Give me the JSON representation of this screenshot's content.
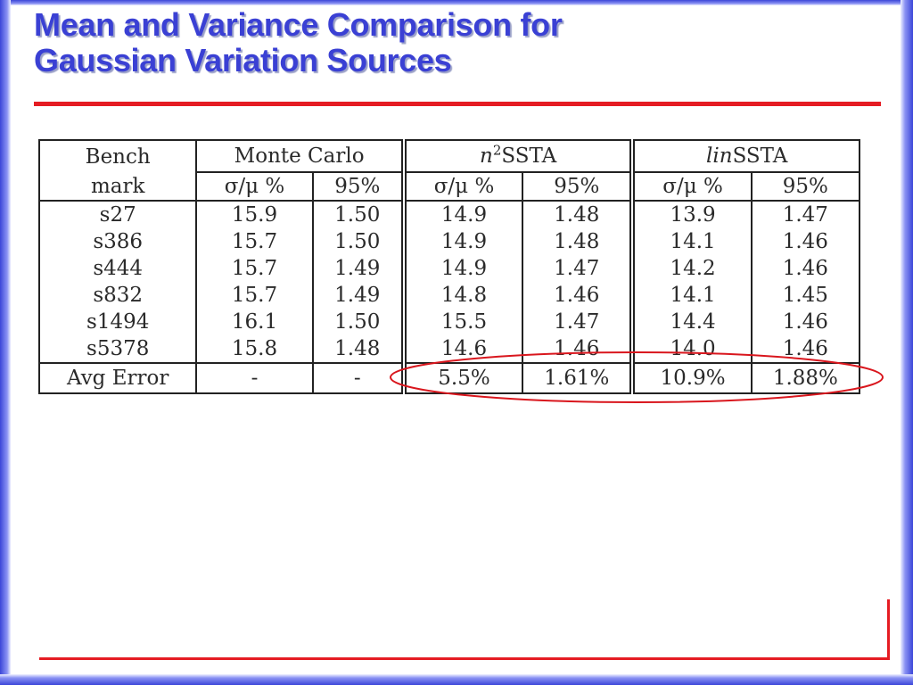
{
  "slide": {
    "title_line1": "Mean and Variance Comparison for",
    "title_line2": "Gaussian Variation Sources"
  },
  "table": {
    "header_groups": {
      "bench_line1": "Bench",
      "bench_line2": "mark",
      "monte_carlo": "Monte Carlo",
      "n2ssta_prefix": "n",
      "n2ssta_sup": "2",
      "n2ssta_suffix": "SSTA",
      "linssta_prefix": "lin",
      "linssta_suffix": "SSTA"
    },
    "sub_headers": [
      "σ/μ %",
      "95%",
      "σ/μ %",
      "95%",
      "σ/μ %",
      "95%"
    ],
    "rows": [
      [
        "s27",
        "15.9",
        "1.50",
        "14.9",
        "1.48",
        "13.9",
        "1.47"
      ],
      [
        "s386",
        "15.7",
        "1.50",
        "14.9",
        "1.48",
        "14.1",
        "1.46"
      ],
      [
        "s444",
        "15.7",
        "1.49",
        "14.9",
        "1.47",
        "14.2",
        "1.46"
      ],
      [
        "s832",
        "15.7",
        "1.49",
        "14.8",
        "1.46",
        "14.1",
        "1.45"
      ],
      [
        "s1494",
        "16.1",
        "1.50",
        "15.5",
        "1.47",
        "14.4",
        "1.46"
      ],
      [
        "s5378",
        "15.8",
        "1.48",
        "14.6",
        "1.46",
        "14.0",
        "1.46"
      ]
    ],
    "avg_row": [
      "Avg Error",
      "-",
      "-",
      "5.5%",
      "1.61%",
      "10.9%",
      "1.88%"
    ]
  },
  "colors": {
    "title": "#3a40d4",
    "rule": "#e51c23",
    "frame": "#3b46d8",
    "highlight_ellipse": "#d9161d"
  }
}
